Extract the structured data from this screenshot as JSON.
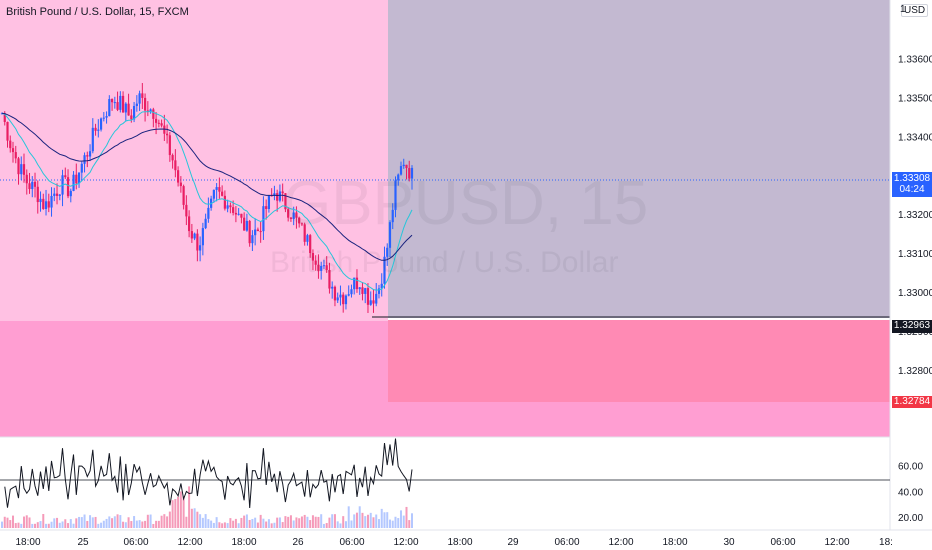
{
  "header": {
    "symbol_title": "British Pound / U.S. Dollar, 15, FXCM",
    "currency_button": "USD"
  },
  "watermark": {
    "ticker": "GBPUSD, 15",
    "name": "British Pound / U.S. Dollar"
  },
  "price_axis": {
    "top_label": "1",
    "labels": [
      {
        "value": 1.336,
        "text": "1.33600"
      },
      {
        "value": 1.335,
        "text": "1.33500"
      },
      {
        "value": 1.334,
        "text": "1.33400"
      },
      {
        "value": 1.332,
        "text": "1.33200"
      },
      {
        "value": 1.331,
        "text": "1.33100"
      },
      {
        "value": 1.33,
        "text": "1.33000"
      },
      {
        "value": 1.329,
        "text": "1.32900"
      },
      {
        "value": 1.328,
        "text": "1.32800"
      }
    ]
  },
  "price_badges": {
    "current_price": "1.33308",
    "countdown": "04:24",
    "line_price": "1.32963",
    "stop_price": "1.32784"
  },
  "rsi_axis": {
    "labels": [
      {
        "value": 60,
        "text": "60.00"
      },
      {
        "value": 40,
        "text": "40.00"
      },
      {
        "value": 20,
        "text": "20.00"
      }
    ]
  },
  "time_axis": {
    "labels": [
      "18:00",
      "25",
      "06:00",
      "12:00",
      "18:00",
      "26",
      "06:00",
      "12:00",
      "18:00",
      "29",
      "06:00",
      "12:00",
      "18:00",
      "30",
      "06:00",
      "12:00",
      "18:"
    ]
  },
  "colors": {
    "up": "#2962ff",
    "down": "#e91e63",
    "ema_fast": "#26c6da",
    "ema_slow": "#1a237e",
    "zone_top": "#ffc1e3",
    "zone_bottom": "#ff9ed2",
    "target_zone": "#c3b9d1",
    "stop_zone": "#ff8ab4",
    "rsi": "#131722"
  },
  "chart_data": {
    "type": "candlestick",
    "symbol": "GBPUSD",
    "interval": "15",
    "last_price": 1.33308,
    "series": [
      {
        "name": "price",
        "values": [
          1.3346,
          1.3338,
          1.3332,
          1.3328,
          1.3326,
          1.3322,
          1.3325,
          1.3328,
          1.3326,
          1.3331,
          1.3336,
          1.3342,
          1.3346,
          1.335,
          1.3348,
          1.3345,
          1.335,
          1.3348,
          1.3346,
          1.334,
          1.3334,
          1.3325,
          1.3316,
          1.3312,
          1.3318,
          1.3326,
          1.3324,
          1.3322,
          1.3318,
          1.3315,
          1.3316,
          1.3322,
          1.3326,
          1.3323,
          1.332,
          1.3316,
          1.3312,
          1.3308,
          1.3304,
          1.33,
          1.3299,
          1.3302,
          1.3303,
          1.3298,
          1.33,
          1.331,
          1.3326,
          1.3334,
          1.333
        ]
      }
    ],
    "ylim": [
      1.3273,
      1.3372
    ]
  }
}
